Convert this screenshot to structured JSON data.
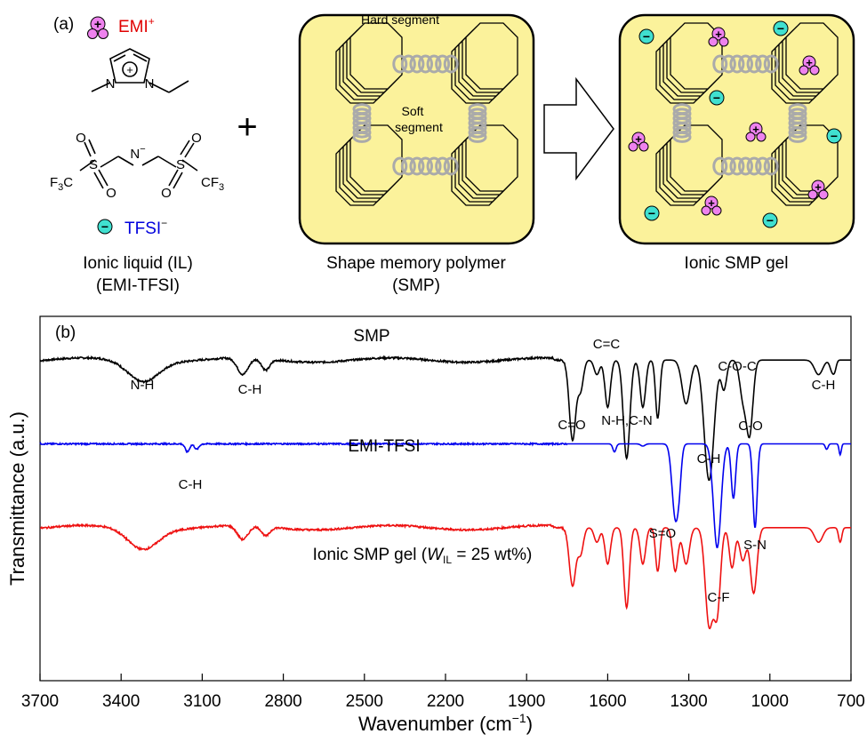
{
  "panel_a": {
    "label": "(a)",
    "emi_label": "EMI",
    "emi_sup": "+",
    "tfsi_label": "TFSI",
    "tfsi_sup": "−",
    "plus_sign": "+",
    "cation_sign": "+",
    "anion_sign": "−",
    "atoms": {
      "n": "N",
      "o": "O",
      "s": "S",
      "f3c": "F",
      "f3c_sub": "3",
      "f3c_c": "C",
      "cf3": "CF",
      "cf3_sub": "3",
      "n_minus": "−"
    },
    "hard_segment": "Hard segment",
    "soft_segment_1": "Soft",
    "soft_segment_2": "segment",
    "caption_il_1": "Ionic liquid (IL)",
    "caption_il_2": "(EMI-TFSI)",
    "caption_smp_1": "Shape memory polymer",
    "caption_smp_2": "(SMP)",
    "caption_gel": "Ionic SMP gel"
  },
  "colors": {
    "smp": "#000000",
    "emi_tfsi": "#0000ee",
    "gel": "#ee1111",
    "cation": "#ee82ee",
    "anion": "#40e0d0",
    "box": "#fbf29b",
    "red_text": "#e00000",
    "blue_text": "#0000dd"
  },
  "chart_data": {
    "type": "line",
    "panel_label": "(b)",
    "xlabel": "Wavenumber (cm",
    "xlabel_sup": "−1",
    "xlabel_end": ")",
    "ylabel": "Transmittance (a.u.)",
    "xlim": [
      3700,
      700
    ],
    "x_ticks": [
      3700,
      3400,
      3100,
      2800,
      2500,
      2200,
      1900,
      1600,
      1300,
      1000,
      700
    ],
    "ylim": [
      0,
      10
    ],
    "series": [
      {
        "name": "SMP",
        "baseline": 8.8,
        "noise": 0.05,
        "peaks": [
          [
            3320,
            0.55,
            55
          ],
          [
            2950,
            0.45,
            20
          ],
          [
            2865,
            0.3,
            15
          ],
          [
            1730,
            2.2,
            12
          ],
          [
            1700,
            0.8,
            10
          ],
          [
            1640,
            0.4,
            10
          ],
          [
            1600,
            1.3,
            10
          ],
          [
            1530,
            2.7,
            12
          ],
          [
            1470,
            1.3,
            10
          ],
          [
            1415,
            1.6,
            8
          ],
          [
            1310,
            1.2,
            15
          ],
          [
            1225,
            3.3,
            18
          ],
          [
            1170,
            0.8,
            10
          ],
          [
            1100,
            1.0,
            12
          ],
          [
            1075,
            2.0,
            12
          ],
          [
            820,
            0.4,
            15
          ],
          [
            770,
            0.3,
            8
          ],
          [
            760,
            0.2,
            6
          ]
        ]
      },
      {
        "name": "EMI-TFSI",
        "baseline": 6.5,
        "noise": 0.04,
        "peaks": [
          [
            3155,
            0.22,
            8
          ],
          [
            3120,
            0.15,
            8
          ],
          [
            1575,
            0.22,
            6
          ],
          [
            1470,
            0.06,
            8
          ],
          [
            1350,
            2.0,
            12
          ],
          [
            1335,
            0.6,
            8
          ],
          [
            1195,
            2.85,
            14
          ],
          [
            1135,
            1.5,
            8
          ],
          [
            1055,
            2.3,
            8
          ],
          [
            790,
            0.15,
            5
          ],
          [
            740,
            0.3,
            4
          ]
        ]
      },
      {
        "name": "Ionic SMP gel (W_IL = 25 wt%)",
        "baseline": 4.2,
        "noise": 0.05,
        "peaks": [
          [
            3320,
            0.55,
            55
          ],
          [
            2950,
            0.38,
            20
          ],
          [
            2865,
            0.25,
            15
          ],
          [
            1730,
            1.6,
            12
          ],
          [
            1700,
            0.7,
            10
          ],
          [
            1640,
            0.4,
            10
          ],
          [
            1600,
            1.0,
            10
          ],
          [
            1530,
            2.2,
            10
          ],
          [
            1470,
            1.0,
            10
          ],
          [
            1415,
            1.2,
            8
          ],
          [
            1350,
            1.2,
            10
          ],
          [
            1310,
            1.0,
            12
          ],
          [
            1225,
            2.65,
            14
          ],
          [
            1195,
            2.25,
            12
          ],
          [
            1140,
            1.1,
            10
          ],
          [
            1100,
            0.9,
            12
          ],
          [
            1060,
            1.8,
            12
          ],
          [
            820,
            0.4,
            15
          ],
          [
            740,
            0.4,
            6
          ]
        ]
      }
    ],
    "series_labels": {
      "smp": "SMP",
      "emi_tfsi": "EMI-TFSI",
      "gel_pre": "Ionic SMP gel (",
      "gel_w": "W",
      "gel_sub": "IL",
      "gel_post": " = 25 wt%)"
    },
    "annotations": {
      "smp": [
        "N-H",
        "C-H",
        "C=C",
        "C=O",
        "N-H,C-N",
        "C-H",
        "C-O-C",
        "C-O",
        "C-H"
      ],
      "emi_tfsi": [
        "C-H",
        "S=O",
        "C-F",
        "S-N"
      ]
    }
  }
}
